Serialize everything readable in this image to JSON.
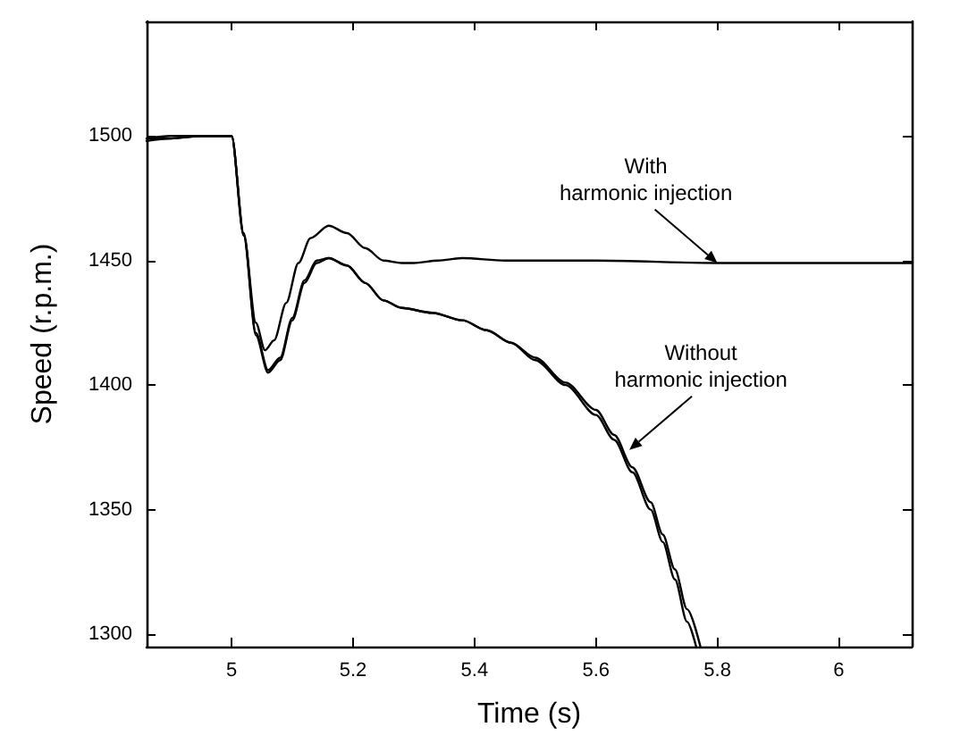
{
  "chart_data": {
    "type": "line",
    "xlabel": "Time (s)",
    "ylabel": "Speed (r.p.m.)",
    "xlim": [
      4.86,
      6.12
    ],
    "xticks": [
      5,
      5.2,
      5.4,
      5.6,
      5.8,
      6
    ],
    "ylim": [
      1295,
      1546
    ],
    "yticks": [
      1300,
      1350,
      1400,
      1450,
      1500
    ],
    "grid": false,
    "marker": "none",
    "line_style": "solid",
    "series": [
      {
        "color": "#000000",
        "x": [
          4.86,
          4.9,
          4.95,
          5.0,
          5.02,
          5.04,
          5.055,
          5.07,
          5.09,
          5.11,
          5.13,
          5.16,
          5.19,
          5.22,
          5.25,
          5.28,
          5.3,
          5.34,
          5.38,
          5.45,
          5.6,
          5.8,
          6.0,
          6.12
        ],
        "values": [
          1499,
          1499,
          1500,
          1500,
          1460,
          1425,
          1414,
          1418,
          1433,
          1449,
          1459,
          1464,
          1461,
          1455,
          1450,
          1449,
          1449,
          1450,
          1451,
          1450,
          1450,
          1449,
          1449,
          1449
        ]
      },
      {
        "color": "#000000",
        "x": [
          4.86,
          4.9,
          4.95,
          5.0,
          5.02,
          5.04,
          5.06,
          5.08,
          5.1,
          5.12,
          5.14,
          5.16,
          5.19,
          5.22,
          5.25,
          5.28,
          5.33,
          5.38,
          5.42,
          5.46,
          5.5,
          5.55,
          5.6,
          5.63,
          5.66,
          5.69,
          5.71,
          5.73,
          5.75,
          5.765
        ],
        "values": [
          1498,
          1499,
          1500,
          1500,
          1460,
          1420,
          1405,
          1410,
          1426,
          1441,
          1449,
          1451,
          1448,
          1441,
          1434,
          1431,
          1429,
          1426,
          1422,
          1417,
          1410,
          1400,
          1388,
          1378,
          1365,
          1350,
          1337,
          1322,
          1305,
          1295
        ]
      },
      {
        "color": "#000000",
        "x": [
          4.86,
          4.9,
          4.95,
          5.0,
          5.02,
          5.04,
          5.06,
          5.08,
          5.1,
          5.12,
          5.14,
          5.16,
          5.19,
          5.22,
          5.25,
          5.28,
          5.33,
          5.38,
          5.42,
          5.46,
          5.5,
          5.55,
          5.6,
          5.63,
          5.66,
          5.69,
          5.71,
          5.73,
          5.75,
          5.772
        ],
        "values": [
          1499,
          1500,
          1500,
          1500,
          1461,
          1421,
          1406,
          1411,
          1427,
          1442,
          1450,
          1451,
          1448,
          1441,
          1434,
          1431,
          1429,
          1426,
          1422,
          1417,
          1411,
          1401,
          1390,
          1380,
          1367,
          1353,
          1340,
          1326,
          1310,
          1295
        ]
      }
    ],
    "annotations": [
      {
        "text": "With\nharmonic injection",
        "x": 5.8,
        "y": 1449
      },
      {
        "text": "Without\nharmonic injection",
        "x": 5.655,
        "y": 1374
      }
    ]
  }
}
